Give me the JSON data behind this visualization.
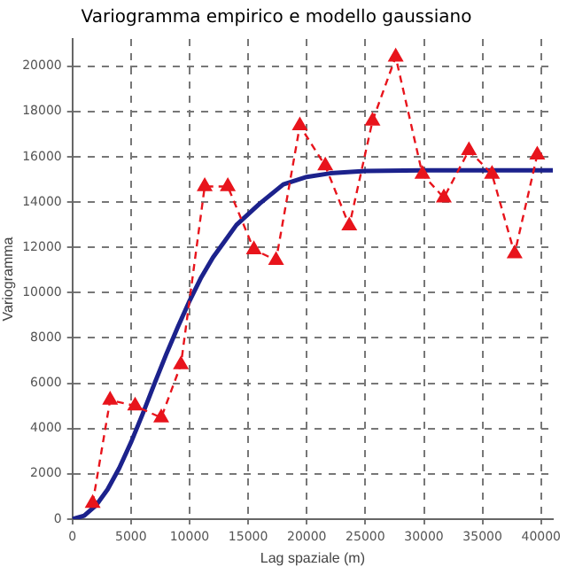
{
  "chart_data": {
    "type": "line",
    "title": "Variogramma empirico e modello gaussiano",
    "xlabel": "Lag spaziale (m)",
    "ylabel": "Variogramma",
    "xlim": [
      0,
      41000
    ],
    "ylim": [
      0,
      21200
    ],
    "xticks": [
      0,
      5000,
      10000,
      15000,
      20000,
      25000,
      30000,
      35000,
      40000
    ],
    "yticks": [
      0,
      2000,
      4000,
      6000,
      8000,
      10000,
      12000,
      14000,
      16000,
      18000,
      20000
    ],
    "grid": true,
    "legend": false,
    "series": [
      {
        "color": "#e8141c",
        "marker": "triangle",
        "line_style": "dashed",
        "x": [
          1730,
          3220,
          5350,
          7580,
          9260,
          11290,
          13260,
          15490,
          17380,
          19410,
          21580,
          23630,
          25610,
          27590,
          29870,
          31700,
          33840,
          35810,
          37740,
          39670
        ],
        "values": [
          700,
          5260,
          5000,
          4480,
          6820,
          14690,
          14690,
          11900,
          11430,
          17370,
          15600,
          12950,
          17580,
          20410,
          15230,
          14190,
          16280,
          15230,
          11720,
          16080
        ]
      },
      {
        "color": "#1c228c",
        "marker": "none",
        "line_style": "solid",
        "x": [
          0,
          1000,
          2000,
          3000,
          4000,
          5000,
          6000,
          7000,
          8000,
          9000,
          10000,
          11000,
          12000,
          14000,
          16000,
          18000,
          20000,
          22000,
          25000,
          30000,
          41000
        ],
        "values": [
          0,
          150,
          600,
          1310,
          2260,
          3390,
          4650,
          5980,
          7270,
          8490,
          9640,
          10680,
          11560,
          12990,
          13940,
          14780,
          15110,
          15270,
          15370,
          15400,
          15400
        ]
      }
    ]
  }
}
